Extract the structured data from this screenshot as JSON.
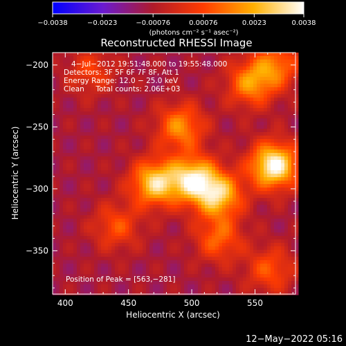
{
  "chart_data": {
    "type": "heatmap",
    "title": "Reconstructed RHESSI Image",
    "xlabel": "Heliocentric X (arcsec)",
    "ylabel": "Heliocentric Y (arcsec)",
    "xlim": [
      390,
      582
    ],
    "ylim": [
      -385,
      -190
    ],
    "xticks": [
      400,
      450,
      500,
      550
    ],
    "yticks": [
      -200,
      -250,
      -300,
      -350
    ],
    "xtick_labels": [
      "400",
      "450",
      "500",
      "550"
    ],
    "ytick_labels": [
      "−200",
      "−250",
      "−300",
      "−350"
    ],
    "colorbar": {
      "range": [
        -0.0038,
        0.0038
      ],
      "ticks": [
        -0.0038,
        -0.0023,
        -0.00076,
        0.00076,
        0.0023,
        0.0038
      ],
      "tick_labels": [
        "−0.0038",
        "−0.0023",
        "−0.00076",
        "0.00076",
        "0.0023",
        "0.0038"
      ],
      "units_label": "(photons cm⁻² s⁻¹ asec⁻²)",
      "colormap_stops": [
        "#0000ff",
        "#6a1ad0",
        "#b01a2a",
        "#ff3c00",
        "#ffb000",
        "#ffffff"
      ]
    },
    "annotations": [
      "4−Jul−2012 19:51:48.000 to 19:55:48.000",
      "Detectors: 3F 5F 6F 7F 8F, Att 1",
      "Energy Range: 12.0 − 25.0 keV",
      "Clean     Total counts: 2.06E+03"
    ],
    "peak_label": "Position of Peak = [563,−281]",
    "peak_position": [
      563,
      -281
    ],
    "sources": [
      {
        "x": 563,
        "y": -281,
        "intensity": 0.0038
      },
      {
        "x": 500,
        "y": -292,
        "intensity": 0.0031
      },
      {
        "x": 470,
        "y": -295,
        "intensity": 0.0029
      },
      {
        "x": 520,
        "y": -305,
        "intensity": 0.0026
      },
      {
        "x": 490,
        "y": -250,
        "intensity": 0.0018
      },
      {
        "x": 545,
        "y": -215,
        "intensity": 0.0018
      },
      {
        "x": 565,
        "y": -200,
        "intensity": 0.0014
      },
      {
        "x": 520,
        "y": -340,
        "intensity": 0.0012
      },
      {
        "x": 440,
        "y": -330,
        "intensity": 0.0009
      },
      {
        "x": 560,
        "y": -365,
        "intensity": 0.001
      },
      {
        "x": 420,
        "y": -205,
        "intensity": 0.0006
      }
    ],
    "background_level": -0.0009,
    "grid": false,
    "legend": "none"
  },
  "footer_timestamp": "12−May−2022 05:16"
}
